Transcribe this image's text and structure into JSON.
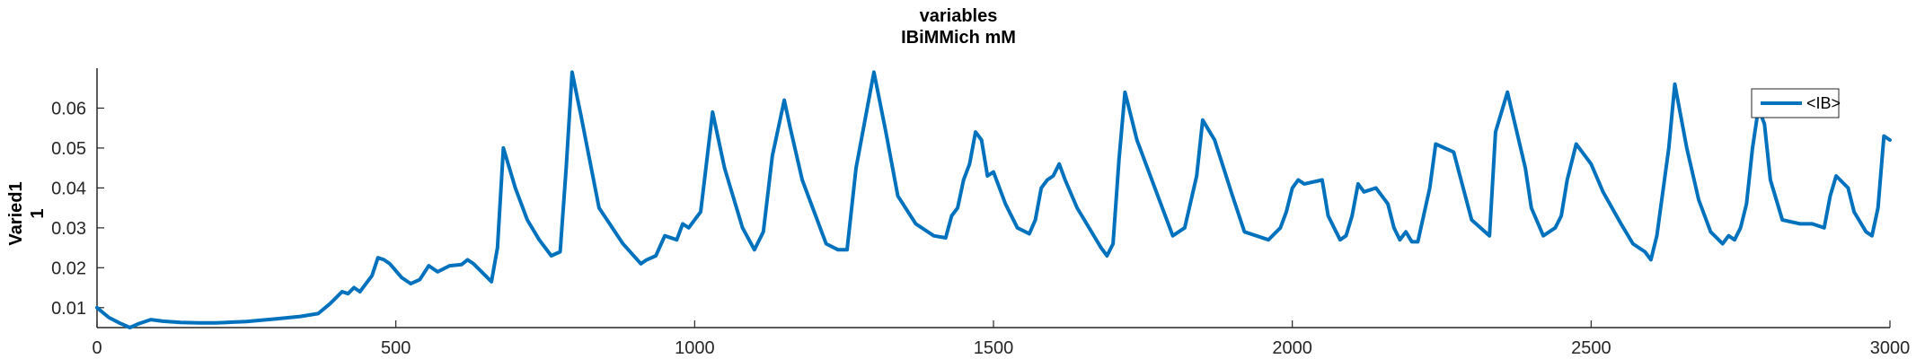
{
  "chart_data": {
    "type": "line",
    "title": "variables",
    "subtitle": "IBiMMich mM",
    "xlabel": "",
    "ylabel": [
      "Varied1",
      "1"
    ],
    "xlim": [
      0,
      3000
    ],
    "ylim": [
      0.005,
      0.07
    ],
    "xticks": [
      0,
      500,
      1000,
      1500,
      2000,
      2500,
      3000
    ],
    "xtick_labels": [
      "0",
      "500",
      "1000",
      "1500",
      "2000",
      "2500",
      "3000"
    ],
    "yticks": [
      0.01,
      0.02,
      0.03,
      0.04,
      0.05,
      0.06
    ],
    "ytick_labels": [
      "0.01",
      "0.02",
      "0.03",
      "0.04",
      "0.05",
      "0.06"
    ],
    "grid": false,
    "legend_position": "top-right",
    "series": [
      {
        "name": "<IB>",
        "color": "#0072BD",
        "x": [
          0,
          20,
          40,
          55,
          70,
          90,
          110,
          140,
          170,
          200,
          250,
          300,
          340,
          370,
          390,
          410,
          420,
          430,
          440,
          450,
          460,
          470,
          480,
          490,
          510,
          525,
          540,
          555,
          570,
          590,
          610,
          620,
          630,
          650,
          660,
          670,
          680,
          700,
          720,
          740,
          760,
          775,
          785,
          795,
          810,
          840,
          880,
          910,
          920,
          935,
          950,
          970,
          980,
          990,
          1010,
          1030,
          1050,
          1080,
          1100,
          1115,
          1130,
          1150,
          1160,
          1180,
          1220,
          1240,
          1255,
          1270,
          1300,
          1320,
          1340,
          1370,
          1400,
          1420,
          1430,
          1440,
          1450,
          1460,
          1470,
          1480,
          1490,
          1500,
          1520,
          1540,
          1560,
          1570,
          1580,
          1590,
          1600,
          1610,
          1620,
          1640,
          1680,
          1690,
          1700,
          1710,
          1720,
          1740,
          1780,
          1800,
          1820,
          1840,
          1850,
          1870,
          1900,
          1920,
          1960,
          1980,
          1990,
          2000,
          2010,
          2020,
          2050,
          2060,
          2070,
          2080,
          2090,
          2100,
          2110,
          2120,
          2140,
          2160,
          2170,
          2180,
          2190,
          2200,
          2210,
          2230,
          2240,
          2270,
          2300,
          2330,
          2340,
          2360,
          2390,
          2400,
          2420,
          2440,
          2450,
          2460,
          2475,
          2490,
          2500,
          2520,
          2550,
          2570,
          2590,
          2600,
          2610,
          2630,
          2640,
          2660,
          2680,
          2700,
          2720,
          2730,
          2740,
          2750,
          2760,
          2770,
          2780,
          2790,
          2800,
          2820,
          2850,
          2870,
          2890,
          2900,
          2910,
          2930,
          2940,
          2960,
          2970,
          2980,
          2990,
          3000
        ],
        "values": [
          0.01,
          0.0075,
          0.006,
          0.005,
          0.006,
          0.007,
          0.0066,
          0.0063,
          0.0062,
          0.0062,
          0.0065,
          0.0072,
          0.0078,
          0.0085,
          0.011,
          0.014,
          0.0135,
          0.015,
          0.014,
          0.016,
          0.018,
          0.0225,
          0.022,
          0.021,
          0.0175,
          0.016,
          0.017,
          0.0205,
          0.019,
          0.0205,
          0.0208,
          0.022,
          0.021,
          0.018,
          0.0165,
          0.025,
          0.05,
          0.04,
          0.032,
          0.027,
          0.023,
          0.024,
          0.045,
          0.069,
          0.058,
          0.035,
          0.026,
          0.021,
          0.022,
          0.023,
          0.028,
          0.027,
          0.031,
          0.03,
          0.034,
          0.059,
          0.045,
          0.03,
          0.0245,
          0.029,
          0.048,
          0.062,
          0.055,
          0.042,
          0.026,
          0.0245,
          0.0245,
          0.045,
          0.069,
          0.054,
          0.038,
          0.031,
          0.028,
          0.0275,
          0.033,
          0.035,
          0.042,
          0.046,
          0.054,
          0.052,
          0.043,
          0.044,
          0.036,
          0.03,
          0.0285,
          0.032,
          0.04,
          0.042,
          0.043,
          0.046,
          0.042,
          0.035,
          0.025,
          0.023,
          0.026,
          0.047,
          0.064,
          0.052,
          0.036,
          0.028,
          0.03,
          0.043,
          0.057,
          0.052,
          0.038,
          0.029,
          0.027,
          0.03,
          0.034,
          0.04,
          0.042,
          0.041,
          0.042,
          0.033,
          0.03,
          0.027,
          0.028,
          0.033,
          0.041,
          0.039,
          0.04,
          0.036,
          0.03,
          0.027,
          0.029,
          0.0265,
          0.0265,
          0.04,
          0.051,
          0.049,
          0.032,
          0.028,
          0.054,
          0.064,
          0.045,
          0.035,
          0.028,
          0.03,
          0.033,
          0.042,
          0.051,
          0.048,
          0.046,
          0.039,
          0.031,
          0.026,
          0.024,
          0.022,
          0.028,
          0.05,
          0.066,
          0.05,
          0.037,
          0.029,
          0.026,
          0.028,
          0.027,
          0.03,
          0.036,
          0.05,
          0.06,
          0.056,
          0.042,
          0.032,
          0.031,
          0.031,
          0.03,
          0.038,
          0.043,
          0.04,
          0.034,
          0.029,
          0.028,
          0.035,
          0.053,
          0.052
        ]
      }
    ]
  }
}
